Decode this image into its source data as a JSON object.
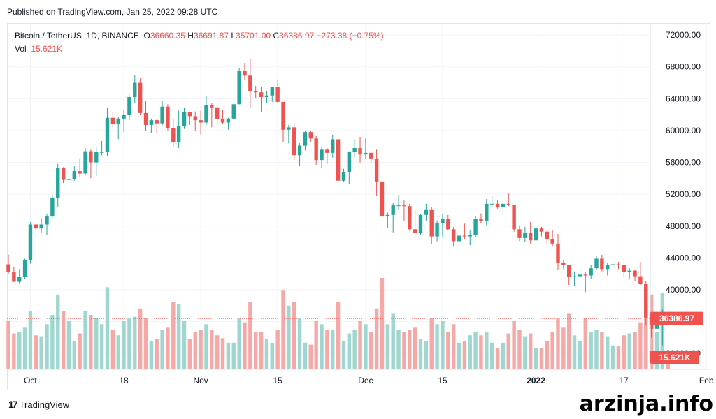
{
  "published": "Published on TradingView.com, Jan 25, 2022 09:28 UTC",
  "legend": {
    "symbol": "Bitcoin / TetherUS, 1D, BINANCE",
    "o_label": "O",
    "o_value": "36660.35",
    "h_label": "H",
    "h_value": "36691.87",
    "l_label": "L",
    "l_value": "35701.00",
    "c_label": "C",
    "c_value": "36386.97",
    "change": "−273.38 (−0.75%)",
    "vol_label": "Vol",
    "vol_value": "15.621K"
  },
  "colors": {
    "up": "#26a69a",
    "down": "#ef5350",
    "vol_up": "#9fd6cf",
    "vol_down": "#f5a8a6",
    "grid": "#f0f3fa",
    "axis_text": "#131722"
  },
  "footer": {
    "logo_text": "TradingView",
    "watermark": "arzinja.info"
  },
  "chart_data": {
    "type": "candlestick",
    "price_axis": {
      "ticks": [
        32000,
        36000,
        40000,
        44000,
        48000,
        52000,
        56000,
        60000,
        64000,
        68000,
        72000
      ],
      "tick_labels": [
        "32000.00",
        "36000.00",
        "40000.00",
        "44000.00",
        "48000.00",
        "52000.00",
        "56000.00",
        "60000.00",
        "64000.00",
        "68000.00",
        "72000.00"
      ],
      "range": [
        30000,
        73500
      ]
    },
    "time_axis": {
      "labels": [
        "Oct",
        "18",
        "Nov",
        "15",
        "Dec",
        "15",
        "2022",
        "17",
        "Feb"
      ],
      "label_dates": [
        "2021-10-01",
        "2021-10-18",
        "2021-11-01",
        "2021-11-15",
        "2021-12-01",
        "2021-12-15",
        "2022-01-01",
        "2022-01-17",
        "2022-02-01"
      ],
      "range": [
        "2021-09-27",
        "2022-02-02"
      ]
    },
    "last_price": {
      "value": 36386.97,
      "label": "36386.97"
    },
    "last_volume": {
      "label": "15.621K"
    },
    "volume_range_max": 98,
    "candles": [
      {
        "d": "2021-09-27",
        "o": 43200,
        "h": 44400,
        "l": 42000,
        "c": 42200,
        "v": 52
      },
      {
        "d": "2021-09-28",
        "o": 42200,
        "h": 42800,
        "l": 41000,
        "c": 41000,
        "v": 38
      },
      {
        "d": "2021-09-29",
        "o": 41000,
        "h": 42600,
        "l": 40800,
        "c": 41600,
        "v": 40
      },
      {
        "d": "2021-09-30",
        "o": 41600,
        "h": 43900,
        "l": 41400,
        "c": 43700,
        "v": 45
      },
      {
        "d": "2021-10-01",
        "o": 43700,
        "h": 48500,
        "l": 43300,
        "c": 48200,
        "v": 62
      },
      {
        "d": "2021-10-02",
        "o": 48200,
        "h": 48300,
        "l": 47400,
        "c": 47700,
        "v": 36
      },
      {
        "d": "2021-10-03",
        "o": 47700,
        "h": 49000,
        "l": 47100,
        "c": 48200,
        "v": 35
      },
      {
        "d": "2021-10-04",
        "o": 48200,
        "h": 49500,
        "l": 46900,
        "c": 49200,
        "v": 48
      },
      {
        "d": "2021-10-05",
        "o": 49200,
        "h": 51900,
        "l": 49100,
        "c": 51500,
        "v": 58
      },
      {
        "d": "2021-10-06",
        "o": 51500,
        "h": 55800,
        "l": 50400,
        "c": 55300,
        "v": 80
      },
      {
        "d": "2021-10-07",
        "o": 55300,
        "h": 55400,
        "l": 53400,
        "c": 53800,
        "v": 62
      },
      {
        "d": "2021-10-08",
        "o": 53800,
        "h": 56100,
        "l": 53600,
        "c": 53900,
        "v": 52
      },
      {
        "d": "2021-10-09",
        "o": 53900,
        "h": 55500,
        "l": 53700,
        "c": 54900,
        "v": 30
      },
      {
        "d": "2021-10-10",
        "o": 54900,
        "h": 56500,
        "l": 54100,
        "c": 54600,
        "v": 38
      },
      {
        "d": "2021-10-11",
        "o": 54600,
        "h": 57800,
        "l": 54400,
        "c": 57400,
        "v": 62
      },
      {
        "d": "2021-10-12",
        "o": 57400,
        "h": 57600,
        "l": 54000,
        "c": 56000,
        "v": 58
      },
      {
        "d": "2021-10-13",
        "o": 56000,
        "h": 58000,
        "l": 54300,
        "c": 57300,
        "v": 55
      },
      {
        "d": "2021-10-14",
        "o": 57300,
        "h": 58700,
        "l": 56900,
        "c": 57300,
        "v": 48
      },
      {
        "d": "2021-10-15",
        "o": 57300,
        "h": 62900,
        "l": 56800,
        "c": 61600,
        "v": 88
      },
      {
        "d": "2021-10-16",
        "o": 61600,
        "h": 62300,
        "l": 60200,
        "c": 60800,
        "v": 42
      },
      {
        "d": "2021-10-17",
        "o": 60800,
        "h": 61700,
        "l": 58900,
        "c": 61500,
        "v": 36
      },
      {
        "d": "2021-10-18",
        "o": 61500,
        "h": 62600,
        "l": 59800,
        "c": 62000,
        "v": 52
      },
      {
        "d": "2021-10-19",
        "o": 62000,
        "h": 64500,
        "l": 61300,
        "c": 64200,
        "v": 55
      },
      {
        "d": "2021-10-20",
        "o": 64200,
        "h": 67000,
        "l": 63500,
        "c": 66000,
        "v": 56
      },
      {
        "d": "2021-10-21",
        "o": 66000,
        "h": 66600,
        "l": 62000,
        "c": 62200,
        "v": 65
      },
      {
        "d": "2021-10-22",
        "o": 62200,
        "h": 63700,
        "l": 60000,
        "c": 60700,
        "v": 55
      },
      {
        "d": "2021-10-23",
        "o": 60700,
        "h": 61500,
        "l": 59700,
        "c": 61300,
        "v": 30
      },
      {
        "d": "2021-10-24",
        "o": 61300,
        "h": 61500,
        "l": 59600,
        "c": 60900,
        "v": 32
      },
      {
        "d": "2021-10-25",
        "o": 60900,
        "h": 63700,
        "l": 60700,
        "c": 63000,
        "v": 42
      },
      {
        "d": "2021-10-26",
        "o": 63000,
        "h": 63300,
        "l": 60000,
        "c": 60300,
        "v": 45
      },
      {
        "d": "2021-10-27",
        "o": 60300,
        "h": 61500,
        "l": 58000,
        "c": 58500,
        "v": 72
      },
      {
        "d": "2021-10-28",
        "o": 58500,
        "h": 62500,
        "l": 57800,
        "c": 60600,
        "v": 70
      },
      {
        "d": "2021-10-29",
        "o": 60600,
        "h": 62900,
        "l": 60200,
        "c": 62300,
        "v": 52
      },
      {
        "d": "2021-10-30",
        "o": 62300,
        "h": 62300,
        "l": 60700,
        "c": 61800,
        "v": 32
      },
      {
        "d": "2021-10-31",
        "o": 61800,
        "h": 62400,
        "l": 60000,
        "c": 61300,
        "v": 40
      },
      {
        "d": "2021-11-01",
        "o": 61300,
        "h": 62500,
        "l": 59500,
        "c": 61000,
        "v": 42
      },
      {
        "d": "2021-11-02",
        "o": 61000,
        "h": 64300,
        "l": 60700,
        "c": 63200,
        "v": 48
      },
      {
        "d": "2021-11-03",
        "o": 63200,
        "h": 63500,
        "l": 60400,
        "c": 62900,
        "v": 42
      },
      {
        "d": "2021-11-04",
        "o": 62900,
        "h": 63100,
        "l": 60700,
        "c": 61400,
        "v": 36
      },
      {
        "d": "2021-11-05",
        "o": 61400,
        "h": 62600,
        "l": 60800,
        "c": 61000,
        "v": 33
      },
      {
        "d": "2021-11-06",
        "o": 61000,
        "h": 61600,
        "l": 60100,
        "c": 61500,
        "v": 28
      },
      {
        "d": "2021-11-07",
        "o": 61500,
        "h": 63300,
        "l": 61300,
        "c": 63300,
        "v": 28
      },
      {
        "d": "2021-11-08",
        "o": 63300,
        "h": 67800,
        "l": 63300,
        "c": 67500,
        "v": 55
      },
      {
        "d": "2021-11-09",
        "o": 67500,
        "h": 68500,
        "l": 66400,
        "c": 66900,
        "v": 50
      },
      {
        "d": "2021-11-10",
        "o": 66900,
        "h": 69000,
        "l": 62800,
        "c": 64900,
        "v": 72
      },
      {
        "d": "2021-11-11",
        "o": 64900,
        "h": 65600,
        "l": 64100,
        "c": 64800,
        "v": 40
      },
      {
        "d": "2021-11-12",
        "o": 64800,
        "h": 65500,
        "l": 62300,
        "c": 64200,
        "v": 40
      },
      {
        "d": "2021-11-13",
        "o": 64200,
        "h": 65000,
        "l": 63400,
        "c": 64400,
        "v": 32
      },
      {
        "d": "2021-11-14",
        "o": 64400,
        "h": 65500,
        "l": 63600,
        "c": 65500,
        "v": 28
      },
      {
        "d": "2021-11-15",
        "o": 65500,
        "h": 66300,
        "l": 63400,
        "c": 63600,
        "v": 42
      },
      {
        "d": "2021-11-16",
        "o": 63600,
        "h": 63600,
        "l": 58600,
        "c": 60100,
        "v": 85
      },
      {
        "d": "2021-11-17",
        "o": 60100,
        "h": 60700,
        "l": 58400,
        "c": 60400,
        "v": 68
      },
      {
        "d": "2021-11-18",
        "o": 60400,
        "h": 60900,
        "l": 56300,
        "c": 56900,
        "v": 72
      },
      {
        "d": "2021-11-19",
        "o": 56900,
        "h": 58400,
        "l": 55600,
        "c": 58100,
        "v": 55
      },
      {
        "d": "2021-11-20",
        "o": 58100,
        "h": 59900,
        "l": 57500,
        "c": 59800,
        "v": 28
      },
      {
        "d": "2021-11-21",
        "o": 59800,
        "h": 60000,
        "l": 58500,
        "c": 59000,
        "v": 26
      },
      {
        "d": "2021-11-22",
        "o": 59000,
        "h": 59300,
        "l": 55700,
        "c": 56300,
        "v": 52
      },
      {
        "d": "2021-11-23",
        "o": 56300,
        "h": 58000,
        "l": 55300,
        "c": 57600,
        "v": 48
      },
      {
        "d": "2021-11-24",
        "o": 57600,
        "h": 57800,
        "l": 55800,
        "c": 57200,
        "v": 42
      },
      {
        "d": "2021-11-25",
        "o": 57200,
        "h": 59400,
        "l": 56600,
        "c": 58900,
        "v": 42
      },
      {
        "d": "2021-11-26",
        "o": 58900,
        "h": 59200,
        "l": 53600,
        "c": 53700,
        "v": 72
      },
      {
        "d": "2021-11-27",
        "o": 53700,
        "h": 55200,
        "l": 53600,
        "c": 54800,
        "v": 30
      },
      {
        "d": "2021-11-28",
        "o": 54800,
        "h": 57400,
        "l": 53300,
        "c": 57300,
        "v": 38
      },
      {
        "d": "2021-11-29",
        "o": 57300,
        "h": 58900,
        "l": 56700,
        "c": 57800,
        "v": 42
      },
      {
        "d": "2021-11-30",
        "o": 57800,
        "h": 59200,
        "l": 56000,
        "c": 57000,
        "v": 52
      },
      {
        "d": "2021-12-01",
        "o": 57000,
        "h": 59000,
        "l": 56500,
        "c": 57200,
        "v": 48
      },
      {
        "d": "2021-12-02",
        "o": 57200,
        "h": 57400,
        "l": 55900,
        "c": 56500,
        "v": 40
      },
      {
        "d": "2021-12-03",
        "o": 56500,
        "h": 57600,
        "l": 51800,
        "c": 53600,
        "v": 65
      },
      {
        "d": "2021-12-04",
        "o": 53600,
        "h": 53900,
        "l": 42000,
        "c": 49200,
        "v": 98
      },
      {
        "d": "2021-12-05",
        "o": 49200,
        "h": 49700,
        "l": 47800,
        "c": 49400,
        "v": 48
      },
      {
        "d": "2021-12-06",
        "o": 49400,
        "h": 50900,
        "l": 47200,
        "c": 50600,
        "v": 60
      },
      {
        "d": "2021-12-07",
        "o": 50600,
        "h": 51900,
        "l": 50100,
        "c": 50600,
        "v": 42
      },
      {
        "d": "2021-12-08",
        "o": 50600,
        "h": 51200,
        "l": 48700,
        "c": 50500,
        "v": 40
      },
      {
        "d": "2021-12-09",
        "o": 50500,
        "h": 50800,
        "l": 47400,
        "c": 47600,
        "v": 42
      },
      {
        "d": "2021-12-10",
        "o": 47600,
        "h": 50100,
        "l": 47300,
        "c": 47100,
        "v": 45
      },
      {
        "d": "2021-12-11",
        "o": 47100,
        "h": 49500,
        "l": 46900,
        "c": 49400,
        "v": 32
      },
      {
        "d": "2021-12-12",
        "o": 49400,
        "h": 50800,
        "l": 48700,
        "c": 50100,
        "v": 30
      },
      {
        "d": "2021-12-13",
        "o": 50100,
        "h": 50400,
        "l": 45800,
        "c": 46700,
        "v": 55
      },
      {
        "d": "2021-12-14",
        "o": 46700,
        "h": 48700,
        "l": 46100,
        "c": 48400,
        "v": 48
      },
      {
        "d": "2021-12-15",
        "o": 48400,
        "h": 49500,
        "l": 46600,
        "c": 48900,
        "v": 52
      },
      {
        "d": "2021-12-16",
        "o": 48900,
        "h": 49400,
        "l": 47500,
        "c": 47600,
        "v": 40
      },
      {
        "d": "2021-12-17",
        "o": 47600,
        "h": 47900,
        "l": 45500,
        "c": 46100,
        "v": 48
      },
      {
        "d": "2021-12-18",
        "o": 46100,
        "h": 47300,
        "l": 45600,
        "c": 46800,
        "v": 28
      },
      {
        "d": "2021-12-19",
        "o": 46800,
        "h": 48300,
        "l": 46400,
        "c": 46700,
        "v": 30
      },
      {
        "d": "2021-12-20",
        "o": 46700,
        "h": 47500,
        "l": 45600,
        "c": 46900,
        "v": 36
      },
      {
        "d": "2021-12-21",
        "o": 46900,
        "h": 49300,
        "l": 46600,
        "c": 48900,
        "v": 40
      },
      {
        "d": "2021-12-22",
        "o": 48900,
        "h": 49600,
        "l": 48400,
        "c": 48600,
        "v": 36
      },
      {
        "d": "2021-12-23",
        "o": 48600,
        "h": 51400,
        "l": 48100,
        "c": 50800,
        "v": 40
      },
      {
        "d": "2021-12-24",
        "o": 50800,
        "h": 51800,
        "l": 50400,
        "c": 50800,
        "v": 28
      },
      {
        "d": "2021-12-25",
        "o": 50800,
        "h": 51200,
        "l": 50200,
        "c": 50400,
        "v": 22
      },
      {
        "d": "2021-12-26",
        "o": 50400,
        "h": 51200,
        "l": 49500,
        "c": 50800,
        "v": 28
      },
      {
        "d": "2021-12-27",
        "o": 50800,
        "h": 52100,
        "l": 50500,
        "c": 50700,
        "v": 38
      },
      {
        "d": "2021-12-28",
        "o": 50700,
        "h": 50700,
        "l": 47300,
        "c": 47600,
        "v": 52
      },
      {
        "d": "2021-12-29",
        "o": 47600,
        "h": 48100,
        "l": 46100,
        "c": 46500,
        "v": 42
      },
      {
        "d": "2021-12-30",
        "o": 46500,
        "h": 47900,
        "l": 46000,
        "c": 47100,
        "v": 35
      },
      {
        "d": "2021-12-31",
        "o": 47100,
        "h": 48500,
        "l": 45700,
        "c": 46200,
        "v": 38
      },
      {
        "d": "2022-01-01",
        "o": 46200,
        "h": 47900,
        "l": 46200,
        "c": 47700,
        "v": 22
      },
      {
        "d": "2022-01-02",
        "o": 47700,
        "h": 47900,
        "l": 46700,
        "c": 47300,
        "v": 22
      },
      {
        "d": "2022-01-03",
        "o": 47300,
        "h": 47500,
        "l": 45700,
        "c": 46400,
        "v": 30
      },
      {
        "d": "2022-01-04",
        "o": 46400,
        "h": 47500,
        "l": 45500,
        "c": 45800,
        "v": 40
      },
      {
        "d": "2022-01-05",
        "o": 45800,
        "h": 47000,
        "l": 42500,
        "c": 43400,
        "v": 55
      },
      {
        "d": "2022-01-06",
        "o": 43400,
        "h": 43700,
        "l": 42600,
        "c": 43100,
        "v": 45
      },
      {
        "d": "2022-01-07",
        "o": 43100,
        "h": 43100,
        "l": 40600,
        "c": 41600,
        "v": 60
      },
      {
        "d": "2022-01-08",
        "o": 41600,
        "h": 42300,
        "l": 40500,
        "c": 41700,
        "v": 36
      },
      {
        "d": "2022-01-09",
        "o": 41700,
        "h": 42700,
        "l": 41200,
        "c": 41900,
        "v": 30
      },
      {
        "d": "2022-01-10",
        "o": 41900,
        "h": 42200,
        "l": 39700,
        "c": 41800,
        "v": 55
      },
      {
        "d": "2022-01-11",
        "o": 41800,
        "h": 43100,
        "l": 41300,
        "c": 42700,
        "v": 40
      },
      {
        "d": "2022-01-12",
        "o": 42700,
        "h": 44300,
        "l": 42500,
        "c": 43900,
        "v": 42
      },
      {
        "d": "2022-01-13",
        "o": 43900,
        "h": 44400,
        "l": 42300,
        "c": 42600,
        "v": 40
      },
      {
        "d": "2022-01-14",
        "o": 42600,
        "h": 43400,
        "l": 41800,
        "c": 43100,
        "v": 35
      },
      {
        "d": "2022-01-15",
        "o": 43100,
        "h": 43800,
        "l": 42600,
        "c": 43200,
        "v": 25
      },
      {
        "d": "2022-01-16",
        "o": 43200,
        "h": 43500,
        "l": 42600,
        "c": 43100,
        "v": 24
      },
      {
        "d": "2022-01-17",
        "o": 43100,
        "h": 43200,
        "l": 41600,
        "c": 42200,
        "v": 36
      },
      {
        "d": "2022-01-18",
        "o": 42200,
        "h": 42700,
        "l": 41300,
        "c": 42400,
        "v": 38
      },
      {
        "d": "2022-01-19",
        "o": 42400,
        "h": 42500,
        "l": 41100,
        "c": 41700,
        "v": 40
      },
      {
        "d": "2022-01-20",
        "o": 41700,
        "h": 43500,
        "l": 40600,
        "c": 40700,
        "v": 50
      },
      {
        "d": "2022-01-21",
        "o": 40700,
        "h": 41100,
        "l": 35500,
        "c": 36500,
        "v": 88
      },
      {
        "d": "2022-01-22",
        "o": 36500,
        "h": 36800,
        "l": 34000,
        "c": 35100,
        "v": 80
      },
      {
        "d": "2022-01-23",
        "o": 35100,
        "h": 36500,
        "l": 34600,
        "c": 36300,
        "v": 40
      },
      {
        "d": "2022-01-24",
        "o": 36300,
        "h": 37500,
        "l": 33000,
        "c": 36700,
        "v": 82
      },
      {
        "d": "2022-01-25",
        "o": 36660.35,
        "h": 36691.87,
        "l": 35701.0,
        "c": 36386.97,
        "v": 15.621
      }
    ]
  }
}
